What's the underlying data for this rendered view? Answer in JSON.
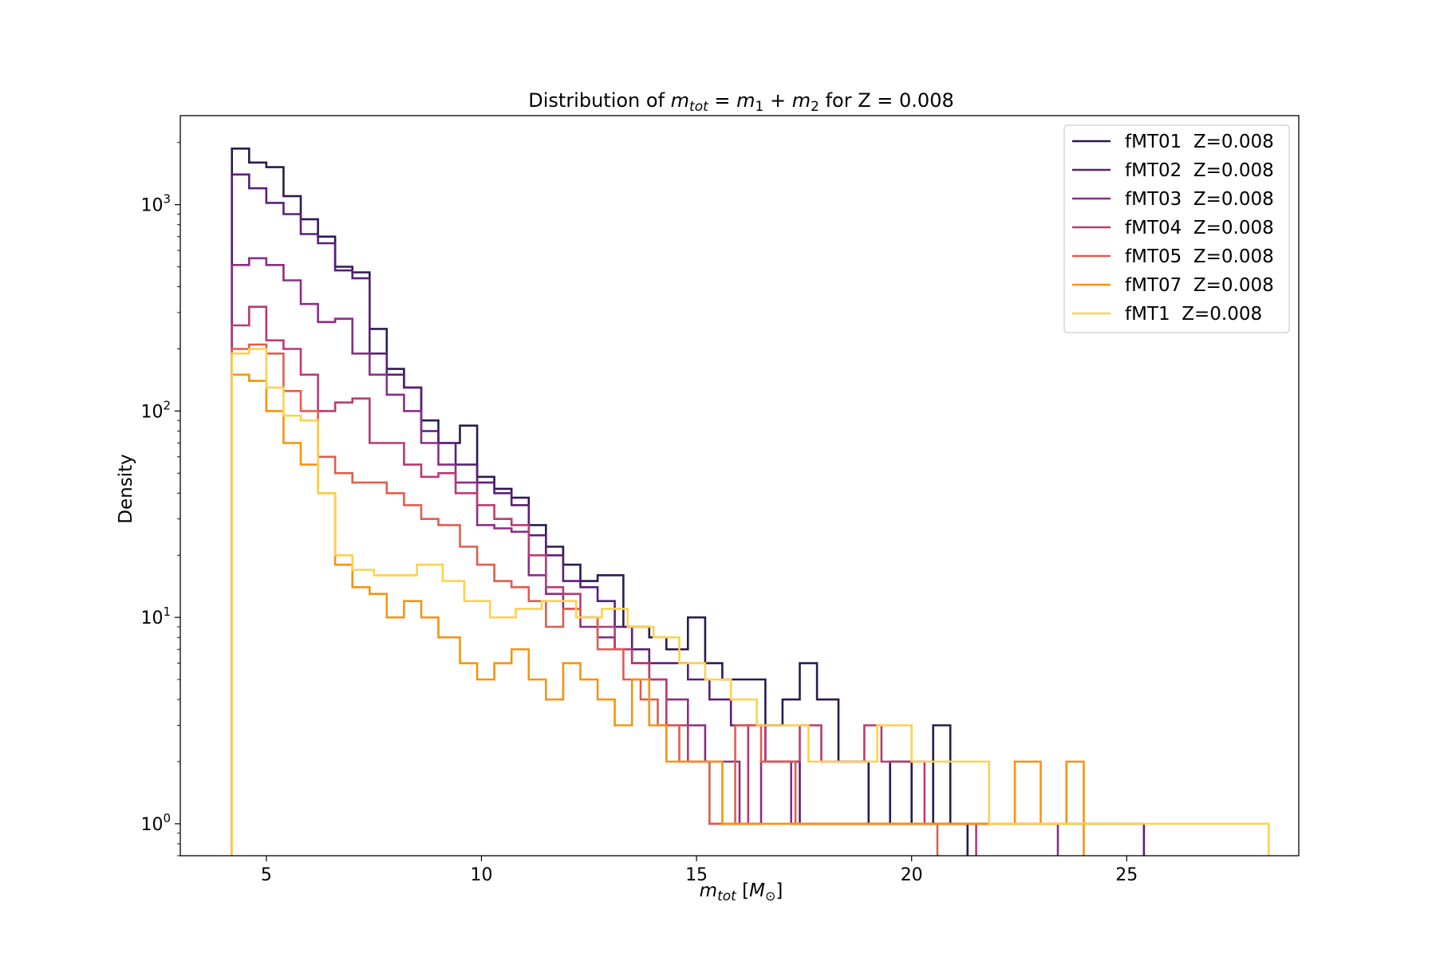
{
  "chart_data": {
    "type": "histogram-step",
    "title": {
      "prefix": "Distribution of ",
      "math_main": "m",
      "math_sub": "tot",
      "math_eq": " = ",
      "math_m1": "m",
      "math_m1_sub": "1",
      "math_plus": " + ",
      "math_m2": "m",
      "math_m2_sub": "2",
      "suffix": " for Z = 0.008"
    },
    "xlabel": {
      "main": "m",
      "sub": "tot",
      "unit_open": " [",
      "unit_main": "M",
      "unit_sub": "⊙",
      "unit_close": "]"
    },
    "ylabel": "Density",
    "yscale": "log",
    "xlim": [
      3.0,
      29.0
    ],
    "ylim": [
      0.7,
      2700
    ],
    "xticks": [
      5,
      10,
      15,
      20,
      25
    ],
    "yticks": [
      {
        "value": 1,
        "base": "10",
        "exp": "0"
      },
      {
        "value": 10,
        "base": "10",
        "exp": "1"
      },
      {
        "value": 100,
        "base": "10",
        "exp": "2"
      },
      {
        "value": 1000,
        "base": "10",
        "exp": "3"
      }
    ],
    "grid": false,
    "legend_position": "top-right",
    "series": [
      {
        "name": "fMT01  Z=0.008",
        "color": "#2c1a4f",
        "steps": [
          [
            4.2,
            1870
          ],
          [
            4.6,
            1600
          ],
          [
            5.0,
            1520
          ],
          [
            5.4,
            1100
          ],
          [
            5.8,
            850
          ],
          [
            6.2,
            700
          ],
          [
            6.6,
            500
          ],
          [
            7.0,
            470
          ],
          [
            7.4,
            250
          ],
          [
            7.8,
            160
          ],
          [
            8.2,
            130
          ],
          [
            8.6,
            90
          ],
          [
            9.0,
            70
          ],
          [
            9.5,
            85
          ],
          [
            9.9,
            48
          ],
          [
            10.3,
            42
          ],
          [
            10.7,
            38
          ],
          [
            11.1,
            28
          ],
          [
            11.5,
            22
          ],
          [
            11.9,
            18
          ],
          [
            12.3,
            15
          ],
          [
            12.7,
            16
          ],
          [
            13.3,
            9
          ],
          [
            13.9,
            8
          ],
          [
            14.3,
            7
          ],
          [
            14.8,
            10
          ],
          [
            15.2,
            6
          ],
          [
            15.6,
            5
          ],
          [
            16.1,
            5
          ],
          [
            16.6,
            3
          ],
          [
            17.0,
            4
          ],
          [
            17.4,
            6
          ],
          [
            17.8,
            4
          ],
          [
            18.3,
            2
          ],
          [
            19.0,
            1
          ],
          [
            19.5,
            2
          ],
          [
            20.0,
            1
          ],
          [
            20.5,
            3
          ],
          [
            20.9,
            1
          ]
        ]
      },
      {
        "name": "fMT02  Z=0.008",
        "color": "#5a1f7a",
        "steps": [
          [
            4.2,
            1400
          ],
          [
            4.6,
            1200
          ],
          [
            5.0,
            1020
          ],
          [
            5.4,
            900
          ],
          [
            5.8,
            720
          ],
          [
            6.2,
            650
          ],
          [
            6.6,
            480
          ],
          [
            7.0,
            440
          ],
          [
            7.4,
            190
          ],
          [
            7.8,
            150
          ],
          [
            8.2,
            130
          ],
          [
            8.6,
            80
          ],
          [
            9.0,
            70
          ],
          [
            9.4,
            55
          ],
          [
            9.9,
            45
          ],
          [
            10.3,
            40
          ],
          [
            10.7,
            35
          ],
          [
            11.1,
            25
          ],
          [
            11.5,
            20
          ],
          [
            11.9,
            15
          ],
          [
            12.3,
            14
          ],
          [
            12.7,
            12
          ],
          [
            13.1,
            9
          ],
          [
            13.5,
            7
          ],
          [
            13.9,
            6
          ],
          [
            14.3,
            6
          ],
          [
            14.8,
            5
          ],
          [
            15.3,
            4
          ],
          [
            15.8,
            3
          ],
          [
            16.6,
            2
          ],
          [
            17.4,
            1
          ],
          [
            18.2,
            1
          ],
          [
            19.3,
            1
          ],
          [
            20.1,
            1
          ],
          [
            20.9,
            1
          ],
          [
            21.7,
            1
          ],
          [
            22.6,
            1
          ],
          [
            24.5,
            1
          ],
          [
            25.0,
            1
          ]
        ]
      },
      {
        "name": "fMT03  Z=0.008",
        "color": "#8a2e85",
        "steps": [
          [
            4.2,
            510
          ],
          [
            4.6,
            550
          ],
          [
            5.0,
            510
          ],
          [
            5.4,
            430
          ],
          [
            5.8,
            330
          ],
          [
            6.2,
            270
          ],
          [
            6.6,
            280
          ],
          [
            7.0,
            190
          ],
          [
            7.4,
            150
          ],
          [
            7.8,
            120
          ],
          [
            8.2,
            100
          ],
          [
            8.6,
            70
          ],
          [
            9.0,
            55
          ],
          [
            9.4,
            45
          ],
          [
            9.9,
            28
          ],
          [
            10.3,
            27
          ],
          [
            10.7,
            26
          ],
          [
            11.1,
            16
          ],
          [
            11.5,
            13
          ],
          [
            11.9,
            11
          ],
          [
            12.3,
            9
          ],
          [
            12.7,
            8
          ],
          [
            13.1,
            7
          ],
          [
            13.5,
            6
          ],
          [
            13.9,
            5
          ],
          [
            14.3,
            4
          ],
          [
            14.8,
            3
          ],
          [
            15.2,
            2
          ],
          [
            16.0,
            1
          ],
          [
            16.5,
            2
          ],
          [
            17.2,
            1
          ],
          [
            18.3,
            1
          ],
          [
            19.1,
            1
          ],
          [
            20.2,
            1
          ],
          [
            21.0,
            1
          ],
          [
            22.2,
            1
          ],
          [
            23.0,
            1
          ]
        ]
      },
      {
        "name": "fMT04  Z=0.008",
        "color": "#b93a72",
        "steps": [
          [
            4.2,
            260
          ],
          [
            4.6,
            320
          ],
          [
            5.0,
            220
          ],
          [
            5.4,
            200
          ],
          [
            5.8,
            150
          ],
          [
            6.2,
            100
          ],
          [
            6.6,
            110
          ],
          [
            7.0,
            115
          ],
          [
            7.4,
            70
          ],
          [
            7.8,
            70
          ],
          [
            8.2,
            55
          ],
          [
            8.6,
            48
          ],
          [
            9.0,
            50
          ],
          [
            9.4,
            40
          ],
          [
            9.9,
            35
          ],
          [
            10.3,
            30
          ],
          [
            10.7,
            28
          ],
          [
            11.1,
            20
          ],
          [
            11.5,
            14
          ],
          [
            11.9,
            13
          ],
          [
            12.3,
            10
          ],
          [
            12.7,
            9
          ],
          [
            13.1,
            7
          ],
          [
            13.5,
            6
          ],
          [
            13.9,
            5
          ],
          [
            14.3,
            3
          ],
          [
            14.8,
            2
          ],
          [
            15.3,
            1
          ],
          [
            16.2,
            3
          ],
          [
            16.6,
            2
          ],
          [
            17.4,
            3
          ],
          [
            17.9,
            2
          ],
          [
            18.9,
            3
          ],
          [
            19.3,
            2
          ],
          [
            20.3,
            1
          ],
          [
            21.1,
            1
          ]
        ]
      },
      {
        "name": "fMT05  Z=0.008",
        "color": "#e05d4f",
        "steps": [
          [
            4.2,
            200
          ],
          [
            4.6,
            210
          ],
          [
            5.0,
            190
          ],
          [
            5.4,
            125
          ],
          [
            5.8,
            100
          ],
          [
            6.2,
            60
          ],
          [
            6.6,
            50
          ],
          [
            7.0,
            45
          ],
          [
            7.4,
            45
          ],
          [
            7.8,
            40
          ],
          [
            8.2,
            35
          ],
          [
            8.6,
            30
          ],
          [
            9.0,
            28
          ],
          [
            9.5,
            22
          ],
          [
            9.9,
            18
          ],
          [
            10.3,
            15
          ],
          [
            10.7,
            14
          ],
          [
            11.1,
            12
          ],
          [
            11.5,
            9
          ],
          [
            11.9,
            11
          ],
          [
            12.3,
            10
          ],
          [
            12.7,
            7
          ],
          [
            13.3,
            5
          ],
          [
            13.7,
            4
          ],
          [
            14.1,
            3
          ],
          [
            14.6,
            2
          ],
          [
            15.3,
            1
          ],
          [
            15.9,
            3
          ],
          [
            16.5,
            2
          ],
          [
            17.3,
            1
          ],
          [
            18.1,
            1
          ],
          [
            19.0,
            1
          ],
          [
            20.2,
            1
          ]
        ]
      },
      {
        "name": "fMT07  Z=0.008",
        "color": "#f7930f",
        "steps": [
          [
            4.2,
            150
          ],
          [
            4.6,
            140
          ],
          [
            5.0,
            100
          ],
          [
            5.4,
            70
          ],
          [
            5.8,
            55
          ],
          [
            6.2,
            40
          ],
          [
            6.6,
            18
          ],
          [
            7.0,
            14
          ],
          [
            7.4,
            13
          ],
          [
            7.8,
            10
          ],
          [
            8.2,
            12
          ],
          [
            8.6,
            10
          ],
          [
            9.0,
            8
          ],
          [
            9.5,
            6
          ],
          [
            9.9,
            5
          ],
          [
            10.3,
            6
          ],
          [
            10.7,
            7
          ],
          [
            11.1,
            5
          ],
          [
            11.5,
            4
          ],
          [
            11.9,
            6
          ],
          [
            12.3,
            5
          ],
          [
            12.7,
            4
          ],
          [
            13.1,
            3
          ],
          [
            13.5,
            5
          ],
          [
            13.9,
            3
          ],
          [
            14.3,
            2
          ],
          [
            14.8,
            2
          ],
          [
            15.6,
            1
          ],
          [
            16.2,
            1
          ],
          [
            16.8,
            1
          ],
          [
            17.6,
            1
          ],
          [
            18.4,
            1
          ],
          [
            19.2,
            1
          ],
          [
            20.0,
            1
          ],
          [
            20.8,
            1
          ],
          [
            21.6,
            1
          ],
          [
            22.4,
            2
          ],
          [
            23.0,
            1
          ],
          [
            23.6,
            2
          ]
        ]
      },
      {
        "name": "fMT1  Z=0.008",
        "color": "#fcd14e",
        "steps": [
          [
            4.2,
            190
          ],
          [
            4.6,
            200
          ],
          [
            5.0,
            130
          ],
          [
            5.4,
            95
          ],
          [
            5.8,
            90
          ],
          [
            6.2,
            40
          ],
          [
            6.6,
            20
          ],
          [
            7.0,
            17
          ],
          [
            7.5,
            16
          ],
          [
            8.1,
            16
          ],
          [
            8.5,
            18
          ],
          [
            9.1,
            15
          ],
          [
            9.6,
            12
          ],
          [
            10.2,
            10
          ],
          [
            10.8,
            11
          ],
          [
            11.4,
            12
          ],
          [
            12.2,
            10
          ],
          [
            12.8,
            11
          ],
          [
            13.4,
            9
          ],
          [
            14.0,
            8
          ],
          [
            14.6,
            6
          ],
          [
            15.2,
            5
          ],
          [
            15.8,
            4
          ],
          [
            16.4,
            3
          ],
          [
            17.0,
            3
          ],
          [
            17.6,
            2
          ],
          [
            18.5,
            2
          ],
          [
            19.2,
            3
          ],
          [
            20.0,
            2
          ],
          [
            20.8,
            2
          ],
          [
            21.8,
            1
          ],
          [
            22.7,
            1
          ],
          [
            23.5,
            1
          ],
          [
            26.2,
            1
          ],
          [
            27.9,
            1
          ]
        ]
      }
    ]
  }
}
